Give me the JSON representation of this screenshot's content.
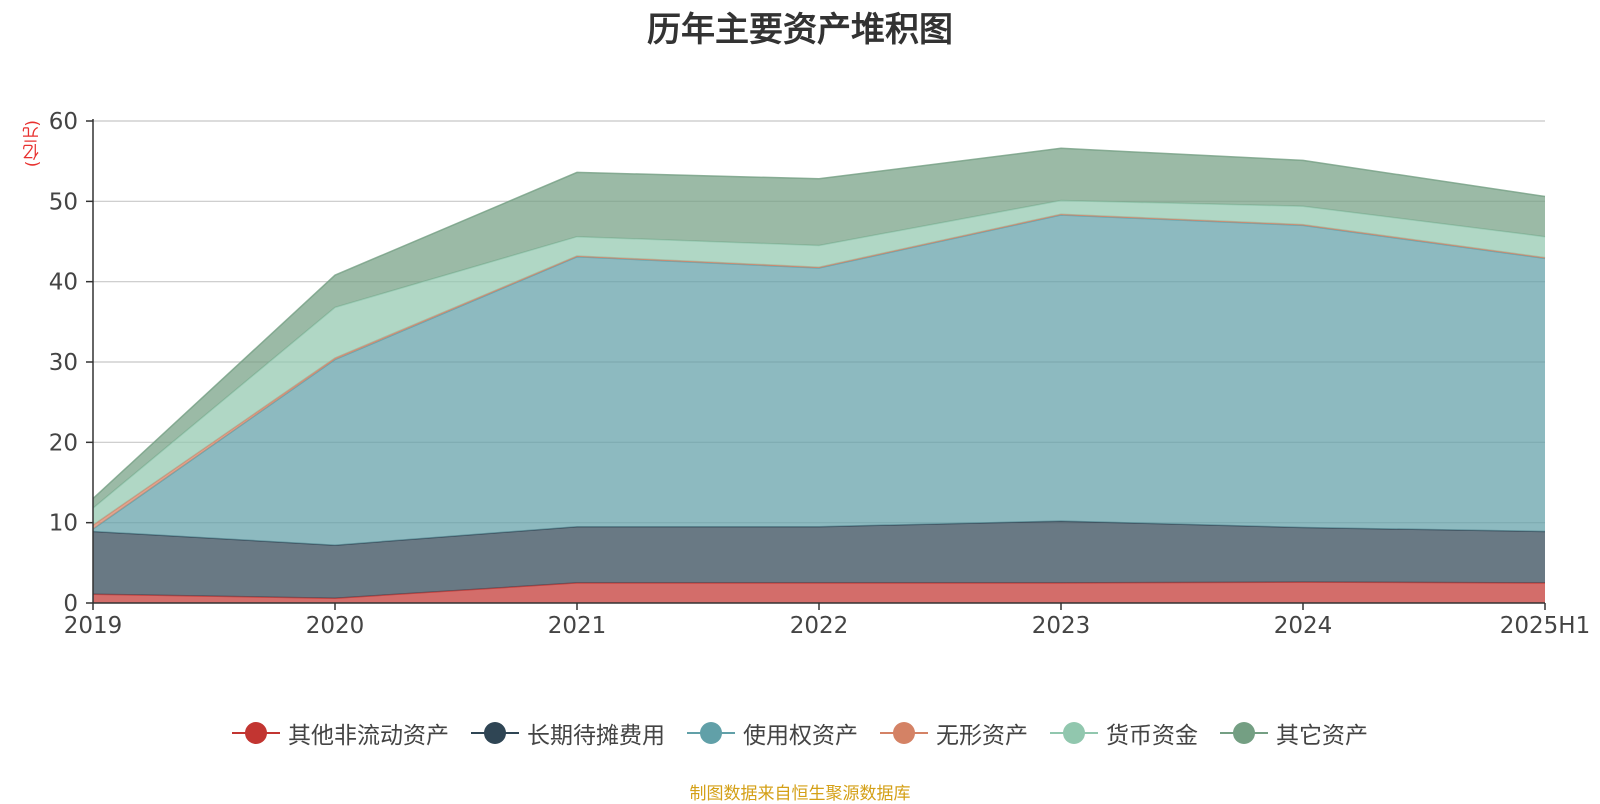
{
  "chart_data": {
    "type": "area",
    "stacked": true,
    "title": "历年主要资产堆积图",
    "unit": "(亿元)",
    "categories": [
      "2019",
      "2020",
      "2021",
      "2022",
      "2023",
      "2024",
      "2025H1"
    ],
    "ylim": [
      0,
      60
    ],
    "yticks": [
      "0",
      "10",
      "20",
      "30",
      "40",
      "50",
      "60"
    ],
    "grid": true,
    "legend_position": "bottom",
    "series": [
      {
        "name": "其他非流动资产",
        "color": "#c23531",
        "values": [
          1.1,
          0.6,
          2.5,
          2.5,
          2.5,
          2.6,
          2.5
        ]
      },
      {
        "name": "长期待摊费用",
        "color": "#2f4554",
        "values": [
          7.8,
          6.6,
          7.0,
          7.0,
          7.7,
          6.8,
          6.4
        ]
      },
      {
        "name": "使用权资产",
        "color": "#61a0a8",
        "values": [
          0.3,
          23.1,
          33.6,
          32.2,
          38.1,
          37.6,
          34.0
        ]
      },
      {
        "name": "无形资产",
        "color": "#d48265",
        "values": [
          0.5,
          0.2,
          0.1,
          0.1,
          0.1,
          0.1,
          0.1
        ]
      },
      {
        "name": "货币资金",
        "color": "#91c7ae",
        "values": [
          2.1,
          6.3,
          2.4,
          2.7,
          1.7,
          2.3,
          2.6
        ]
      },
      {
        "name": "其它资产",
        "color": "#749f83",
        "values": [
          1.2,
          4.0,
          8.0,
          8.3,
          6.5,
          5.7,
          5.0
        ]
      }
    ]
  },
  "source_note": "制图数据来自恒生聚源数据库"
}
